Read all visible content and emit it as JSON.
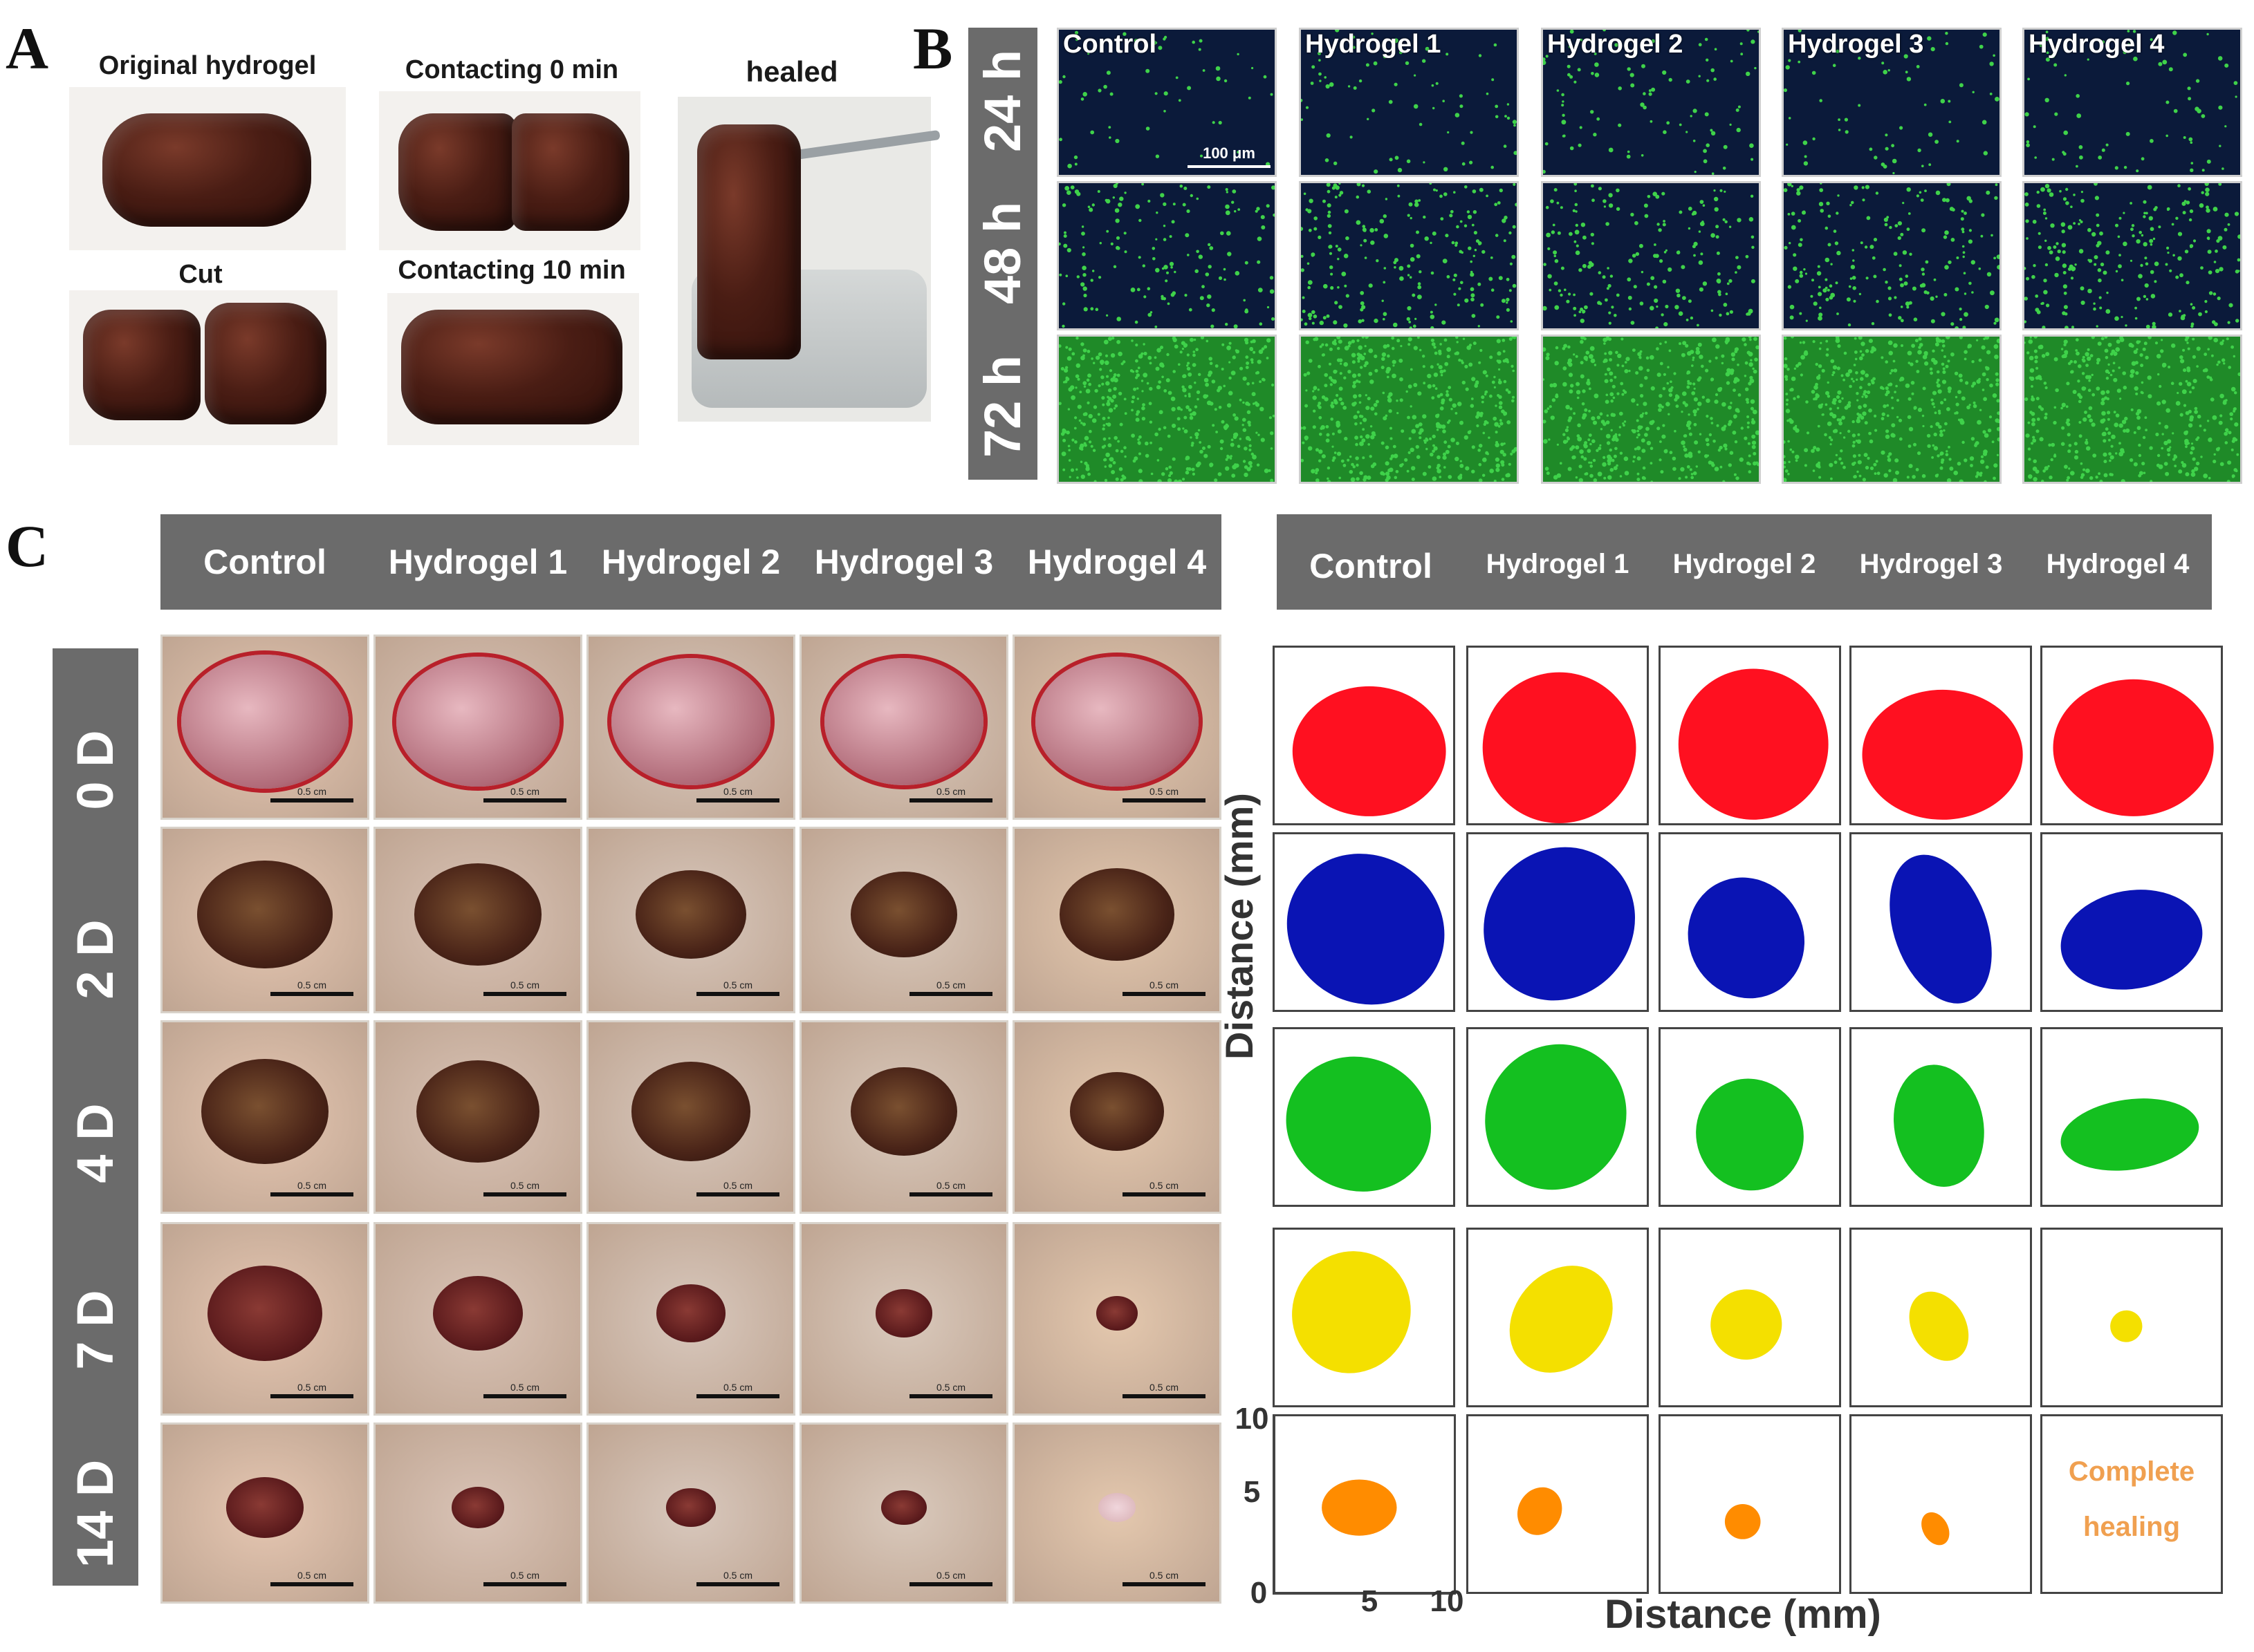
{
  "panels": {
    "a": "A",
    "b": "B",
    "c": "C"
  },
  "panel_a": {
    "labels": {
      "original": "Original hydrogel",
      "contact0": "Contacting 0 min",
      "healed": "healed",
      "cut": "Cut",
      "contact10": "Contacting 10 min"
    }
  },
  "panel_b": {
    "columns": [
      "Control",
      "Hydrogel 1",
      "Hydrogel 2",
      "Hydrogel 3",
      "Hydrogel 4"
    ],
    "rows": [
      "24 h",
      "48 h",
      "72 h"
    ],
    "scale_label": "100 μm",
    "colors": {
      "background": "#0b1a3a",
      "cells": "#3fd24a"
    },
    "cell_density": [
      [
        0.1,
        0.14,
        0.18,
        0.12,
        0.14
      ],
      [
        0.3,
        0.42,
        0.36,
        0.38,
        0.44
      ],
      [
        0.85,
        0.9,
        0.88,
        0.86,
        0.8
      ]
    ]
  },
  "panel_c": {
    "columns": [
      "Control",
      "Hydrogel 1",
      "Hydrogel 2",
      "Hydrogel 3",
      "Hydrogel 4"
    ],
    "rows": [
      "0 D",
      "2 D",
      "4 D",
      "7 D",
      "14 D"
    ],
    "scale_label": "0.5 cm",
    "trace_colors": [
      "#ff1020",
      "#0a14b4",
      "#14c020",
      "#f4e000",
      "#ff8c00"
    ],
    "complete_healing": "Complete healing",
    "y_axis_label": "Distance (mm)",
    "x_axis_label": "Distance (mm)",
    "y_ticks": [
      "10",
      "5",
      "0"
    ],
    "x_ticks": [
      "5",
      "10"
    ]
  }
}
